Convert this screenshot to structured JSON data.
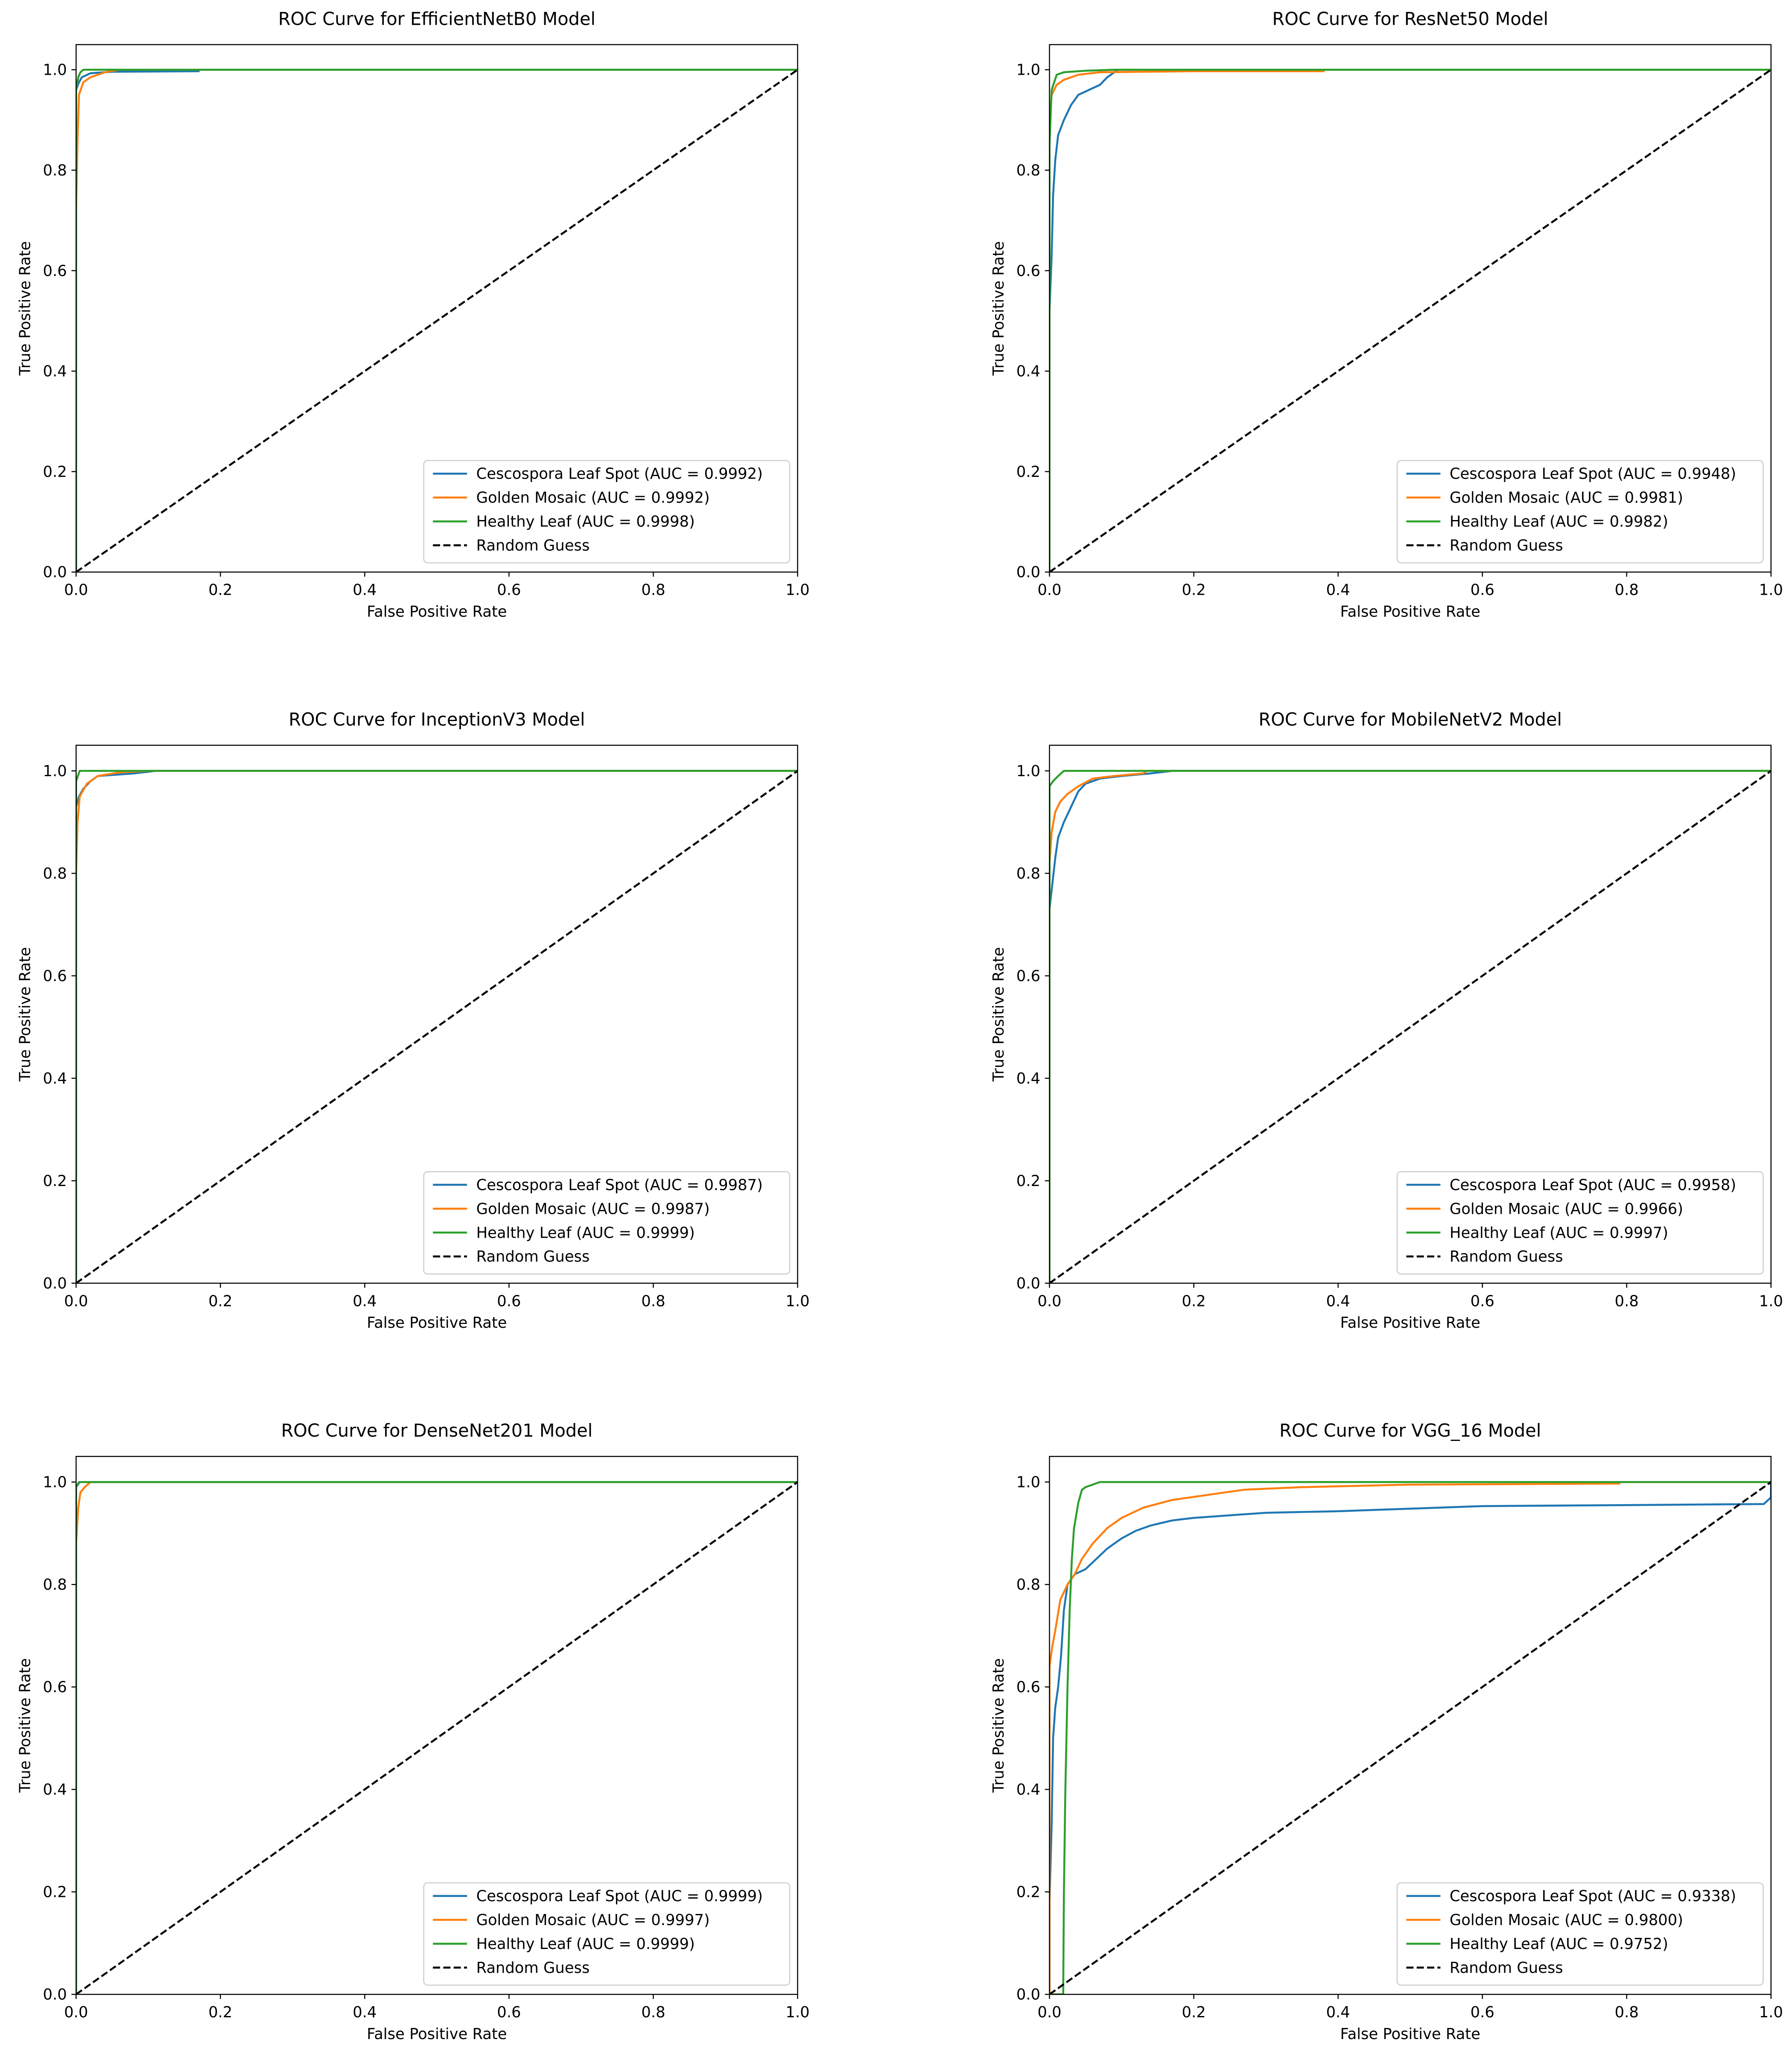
{
  "colors": {
    "cescospora": "#1f77b4",
    "golden": "#ff7f0e",
    "healthy": "#2ca02c",
    "random": "#000000"
  },
  "chart_data": [
    {
      "type": "line",
      "title": "ROC Curve for EfficientNetB0 Model",
      "xlabel": "False Positive Rate",
      "ylabel": "True Positive Rate",
      "xlim": [
        0,
        1
      ],
      "ylim": [
        0,
        1.05
      ],
      "xticks": [
        "0.0",
        "0.2",
        "0.4",
        "0.6",
        "0.8",
        "1.0"
      ],
      "yticks": [
        "0.0",
        "0.2",
        "0.4",
        "0.6",
        "0.8",
        "1.0"
      ],
      "legend_position": "lower-right",
      "series": [
        {
          "name": "Cescospora Leaf Spot (AUC = 0.9992)",
          "color": "#1f77b4",
          "points": [
            [
              0,
              0
            ],
            [
              0,
              0.96
            ],
            [
              0.004,
              0.975
            ],
            [
              0.008,
              0.985
            ],
            [
              0.02,
              0.993
            ],
            [
              0.05,
              0.996
            ],
            [
              0.17,
              0.997
            ],
            [
              0.17,
              1.0
            ],
            [
              1,
              1
            ]
          ]
        },
        {
          "name": "Golden Mosaic (AUC = 0.9992)",
          "color": "#ff7f0e",
          "points": [
            [
              0,
              0
            ],
            [
              0,
              0.72
            ],
            [
              0.002,
              0.86
            ],
            [
              0.004,
              0.95
            ],
            [
              0.01,
              0.975
            ],
            [
              0.02,
              0.985
            ],
            [
              0.04,
              0.995
            ],
            [
              0.06,
              1.0
            ],
            [
              1,
              1
            ]
          ]
        },
        {
          "name": "Healthy Leaf (AUC = 0.9998)",
          "color": "#2ca02c",
          "points": [
            [
              0,
              0
            ],
            [
              0,
              0.96
            ],
            [
              0.003,
              0.985
            ],
            [
              0.006,
              0.995
            ],
            [
              0.01,
              1.0
            ],
            [
              1,
              1
            ]
          ]
        },
        {
          "name": "Random Guess",
          "color": "#000000",
          "dashed": true,
          "points": [
            [
              0,
              0
            ],
            [
              1,
              1
            ]
          ]
        }
      ]
    },
    {
      "type": "line",
      "title": "ROC Curve for ResNet50 Model",
      "xlabel": "False Positive Rate",
      "ylabel": "True Positive Rate",
      "xlim": [
        0,
        1
      ],
      "ylim": [
        0,
        1.05
      ],
      "xticks": [
        "0.0",
        "0.2",
        "0.4",
        "0.6",
        "0.8",
        "1.0"
      ],
      "yticks": [
        "0.0",
        "0.2",
        "0.4",
        "0.6",
        "0.8",
        "1.0"
      ],
      "legend_position": "lower-right",
      "series": [
        {
          "name": "Cescospora Leaf Spot (AUC = 0.9948)",
          "color": "#1f77b4",
          "points": [
            [
              0,
              0
            ],
            [
              0,
              0.52
            ],
            [
              0.003,
              0.63
            ],
            [
              0.005,
              0.75
            ],
            [
              0.008,
              0.82
            ],
            [
              0.012,
              0.87
            ],
            [
              0.02,
              0.9
            ],
            [
              0.03,
              0.93
            ],
            [
              0.04,
              0.95
            ],
            [
              0.055,
              0.96
            ],
            [
              0.07,
              0.97
            ],
            [
              0.08,
              0.985
            ],
            [
              0.095,
              1.0
            ],
            [
              1,
              1
            ]
          ]
        },
        {
          "name": "Golden Mosaic (AUC = 0.9981)",
          "color": "#ff7f0e",
          "points": [
            [
              0,
              0
            ],
            [
              0,
              0.9
            ],
            [
              0.003,
              0.95
            ],
            [
              0.01,
              0.97
            ],
            [
              0.02,
              0.98
            ],
            [
              0.04,
              0.99
            ],
            [
              0.07,
              0.995
            ],
            [
              0.2,
              0.997
            ],
            [
              0.38,
              0.997
            ],
            [
              0.38,
              1.0
            ],
            [
              1,
              1
            ]
          ]
        },
        {
          "name": "Healthy Leaf (AUC = 0.9982)",
          "color": "#2ca02c",
          "points": [
            [
              0,
              0
            ],
            [
              0,
              0.85
            ],
            [
              0.003,
              0.96
            ],
            [
              0.01,
              0.99
            ],
            [
              0.02,
              0.995
            ],
            [
              0.05,
              0.998
            ],
            [
              0.09,
              1.0
            ],
            [
              1,
              1
            ]
          ]
        },
        {
          "name": "Random Guess",
          "color": "#000000",
          "dashed": true,
          "points": [
            [
              0,
              0
            ],
            [
              1,
              1
            ]
          ]
        }
      ]
    },
    {
      "type": "line",
      "title": "ROC Curve for InceptionV3 Model",
      "xlabel": "False Positive Rate",
      "ylabel": "True Positive Rate",
      "xlim": [
        0,
        1
      ],
      "ylim": [
        0,
        1.05
      ],
      "xticks": [
        "0.0",
        "0.2",
        "0.4",
        "0.6",
        "0.8",
        "1.0"
      ],
      "yticks": [
        "0.0",
        "0.2",
        "0.4",
        "0.6",
        "0.8",
        "1.0"
      ],
      "legend_position": "lower-right",
      "series": [
        {
          "name": "Cescospora Leaf Spot (AUC = 0.9987)",
          "color": "#1f77b4",
          "points": [
            [
              0,
              0
            ],
            [
              0,
              0.93
            ],
            [
              0.004,
              0.95
            ],
            [
              0.01,
              0.965
            ],
            [
              0.02,
              0.98
            ],
            [
              0.03,
              0.99
            ],
            [
              0.08,
              0.995
            ],
            [
              0.11,
              1.0
            ],
            [
              1,
              1
            ]
          ]
        },
        {
          "name": "Golden Mosaic (AUC = 0.9987)",
          "color": "#ff7f0e",
          "points": [
            [
              0,
              0
            ],
            [
              0,
              0.8
            ],
            [
              0.002,
              0.9
            ],
            [
              0.005,
              0.95
            ],
            [
              0.015,
              0.975
            ],
            [
              0.03,
              0.99
            ],
            [
              0.06,
              0.997
            ],
            [
              0.1,
              1.0
            ],
            [
              1,
              1
            ]
          ]
        },
        {
          "name": "Healthy Leaf (AUC = 0.9999)",
          "color": "#2ca02c",
          "points": [
            [
              0,
              0
            ],
            [
              0,
              0.98
            ],
            [
              0.005,
              1.0
            ],
            [
              1,
              1
            ]
          ]
        },
        {
          "name": "Random Guess",
          "color": "#000000",
          "dashed": true,
          "points": [
            [
              0,
              0
            ],
            [
              1,
              1
            ]
          ]
        }
      ]
    },
    {
      "type": "line",
      "title": "ROC Curve for MobileNetV2 Model",
      "xlabel": "False Positive Rate",
      "ylabel": "True Positive Rate",
      "xlim": [
        0,
        1
      ],
      "ylim": [
        0,
        1.05
      ],
      "xticks": [
        "0.0",
        "0.2",
        "0.4",
        "0.6",
        "0.8",
        "1.0"
      ],
      "yticks": [
        "0.0",
        "0.2",
        "0.4",
        "0.6",
        "0.8",
        "1.0"
      ],
      "legend_position": "lower-right",
      "series": [
        {
          "name": "Cescospora Leaf Spot (AUC = 0.9958)",
          "color": "#1f77b4",
          "points": [
            [
              0,
              0
            ],
            [
              0,
              0.73
            ],
            [
              0.004,
              0.78
            ],
            [
              0.008,
              0.83
            ],
            [
              0.012,
              0.87
            ],
            [
              0.02,
              0.9
            ],
            [
              0.03,
              0.93
            ],
            [
              0.04,
              0.96
            ],
            [
              0.05,
              0.975
            ],
            [
              0.07,
              0.985
            ],
            [
              0.1,
              0.99
            ],
            [
              0.14,
              0.995
            ],
            [
              0.17,
              1.0
            ],
            [
              1,
              1
            ]
          ]
        },
        {
          "name": "Golden Mosaic (AUC = 0.9966)",
          "color": "#ff7f0e",
          "points": [
            [
              0,
              0
            ],
            [
              0,
              0.82
            ],
            [
              0.003,
              0.88
            ],
            [
              0.008,
              0.92
            ],
            [
              0.015,
              0.94
            ],
            [
              0.025,
              0.955
            ],
            [
              0.04,
              0.97
            ],
            [
              0.06,
              0.985
            ],
            [
              0.09,
              0.99
            ],
            [
              0.13,
              0.995
            ],
            [
              0.135,
              1.0
            ],
            [
              1,
              1
            ]
          ]
        },
        {
          "name": "Healthy Leaf (AUC = 0.9997)",
          "color": "#2ca02c",
          "points": [
            [
              0,
              0
            ],
            [
              0,
              0.97
            ],
            [
              0.005,
              0.98
            ],
            [
              0.012,
              0.99
            ],
            [
              0.02,
              1.0
            ],
            [
              1,
              1
            ]
          ]
        },
        {
          "name": "Random Guess",
          "color": "#000000",
          "dashed": true,
          "points": [
            [
              0,
              0
            ],
            [
              1,
              1
            ]
          ]
        }
      ]
    },
    {
      "type": "line",
      "title": "ROC Curve for DenseNet201 Model",
      "xlabel": "False Positive Rate",
      "ylabel": "True Positive Rate",
      "xlim": [
        0,
        1
      ],
      "ylim": [
        0,
        1.05
      ],
      "xticks": [
        "0.0",
        "0.2",
        "0.4",
        "0.6",
        "0.8",
        "1.0"
      ],
      "yticks": [
        "0.0",
        "0.2",
        "0.4",
        "0.6",
        "0.8",
        "1.0"
      ],
      "legend_position": "lower-right",
      "series": [
        {
          "name": "Cescospora Leaf Spot (AUC = 0.9999)",
          "color": "#1f77b4",
          "points": [
            [
              0,
              0
            ],
            [
              0,
              0.99
            ],
            [
              0.005,
              1.0
            ],
            [
              1,
              1
            ]
          ]
        },
        {
          "name": "Golden Mosaic (AUC = 0.9997)",
          "color": "#ff7f0e",
          "points": [
            [
              0,
              0
            ],
            [
              0,
              0.88
            ],
            [
              0.003,
              0.95
            ],
            [
              0.006,
              0.98
            ],
            [
              0.012,
              0.99
            ],
            [
              0.02,
              1.0
            ],
            [
              1,
              1
            ]
          ]
        },
        {
          "name": "Healthy Leaf (AUC = 0.9999)",
          "color": "#2ca02c",
          "points": [
            [
              0,
              0
            ],
            [
              0,
              0.99
            ],
            [
              0.004,
              1.0
            ],
            [
              1,
              1
            ]
          ]
        },
        {
          "name": "Random Guess",
          "color": "#000000",
          "dashed": true,
          "points": [
            [
              0,
              0
            ],
            [
              1,
              1
            ]
          ]
        }
      ]
    },
    {
      "type": "line",
      "title": "ROC Curve for VGG_16 Model",
      "xlabel": "False Positive Rate",
      "ylabel": "True Positive Rate",
      "xlim": [
        0,
        1
      ],
      "ylim": [
        0,
        1.05
      ],
      "xticks": [
        "0.0",
        "0.2",
        "0.4",
        "0.6",
        "0.8",
        "1.0"
      ],
      "yticks": [
        "0.0",
        "0.2",
        "0.4",
        "0.6",
        "0.8",
        "1.0"
      ],
      "legend_position": "lower-right",
      "series": [
        {
          "name": "Cescospora Leaf Spot (AUC = 0.9338)",
          "color": "#1f77b4",
          "points": [
            [
              0,
              0
            ],
            [
              0,
              0.18
            ],
            [
              0.003,
              0.33
            ],
            [
              0.005,
              0.5
            ],
            [
              0.008,
              0.56
            ],
            [
              0.012,
              0.6
            ],
            [
              0.016,
              0.66
            ],
            [
              0.02,
              0.75
            ],
            [
              0.025,
              0.8
            ],
            [
              0.035,
              0.82
            ],
            [
              0.05,
              0.83
            ],
            [
              0.065,
              0.85
            ],
            [
              0.08,
              0.87
            ],
            [
              0.1,
              0.89
            ],
            [
              0.12,
              0.905
            ],
            [
              0.14,
              0.915
            ],
            [
              0.17,
              0.925
            ],
            [
              0.2,
              0.93
            ],
            [
              0.3,
              0.94
            ],
            [
              0.4,
              0.943
            ],
            [
              0.5,
              0.948
            ],
            [
              0.6,
              0.953
            ],
            [
              0.8,
              0.955
            ],
            [
              0.99,
              0.957
            ],
            [
              1,
              0.97
            ],
            [
              1,
              1
            ]
          ]
        },
        {
          "name": "Golden Mosaic (AUC = 0.9800)",
          "color": "#ff7f0e",
          "points": [
            [
              0,
              0
            ],
            [
              0,
              0.64
            ],
            [
              0.004,
              0.68
            ],
            [
              0.008,
              0.71
            ],
            [
              0.015,
              0.77
            ],
            [
              0.025,
              0.8
            ],
            [
              0.035,
              0.82
            ],
            [
              0.045,
              0.85
            ],
            [
              0.06,
              0.88
            ],
            [
              0.08,
              0.91
            ],
            [
              0.1,
              0.93
            ],
            [
              0.13,
              0.95
            ],
            [
              0.17,
              0.965
            ],
            [
              0.22,
              0.975
            ],
            [
              0.27,
              0.985
            ],
            [
              0.35,
              0.99
            ],
            [
              0.5,
              0.995
            ],
            [
              0.79,
              0.997
            ],
            [
              0.79,
              1.0
            ],
            [
              1,
              1
            ]
          ]
        },
        {
          "name": "Healthy Leaf (AUC = 0.9752)",
          "color": "#2ca02c",
          "points": [
            [
              0,
              0
            ],
            [
              0.019,
              0
            ],
            [
              0.02,
              0.2
            ],
            [
              0.022,
              0.4
            ],
            [
              0.025,
              0.6
            ],
            [
              0.028,
              0.75
            ],
            [
              0.031,
              0.85
            ],
            [
              0.034,
              0.91
            ],
            [
              0.04,
              0.96
            ],
            [
              0.045,
              0.985
            ],
            [
              0.05,
              0.99
            ],
            [
              0.06,
              0.995
            ],
            [
              0.07,
              1.0
            ],
            [
              1,
              1
            ]
          ]
        },
        {
          "name": "Random Guess",
          "color": "#000000",
          "dashed": true,
          "points": [
            [
              0,
              0
            ],
            [
              1,
              1
            ]
          ]
        }
      ]
    }
  ]
}
